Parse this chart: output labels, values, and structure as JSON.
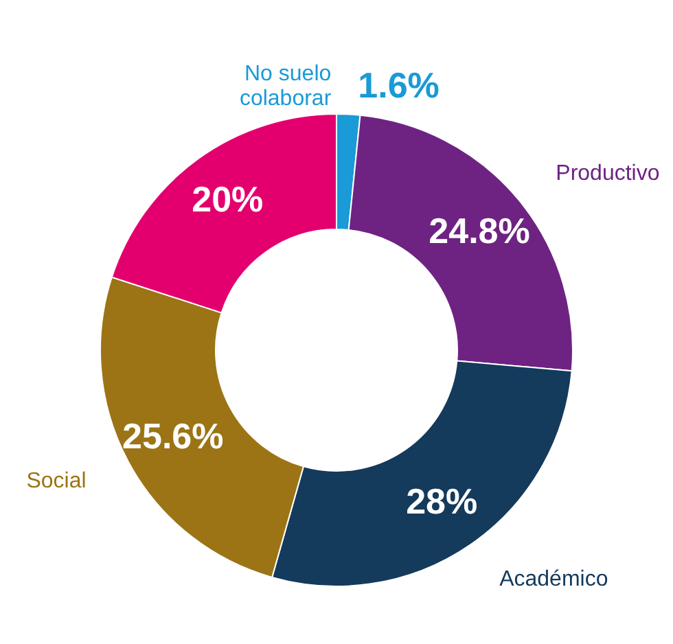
{
  "chart_data": {
    "type": "donut",
    "categories": [
      "No suelo\ncolaborar",
      "Productivo",
      "Académico",
      "Social",
      null
    ],
    "values": [
      1.6,
      24.8,
      28,
      25.6,
      20
    ],
    "value_labels": [
      "1.6%",
      "24.8%",
      "28%",
      "25.6%",
      "20%"
    ],
    "colors": [
      "#1a9ad6",
      "#6e2382",
      "#143a5c",
      "#9c7415",
      "#e3006e"
    ]
  }
}
